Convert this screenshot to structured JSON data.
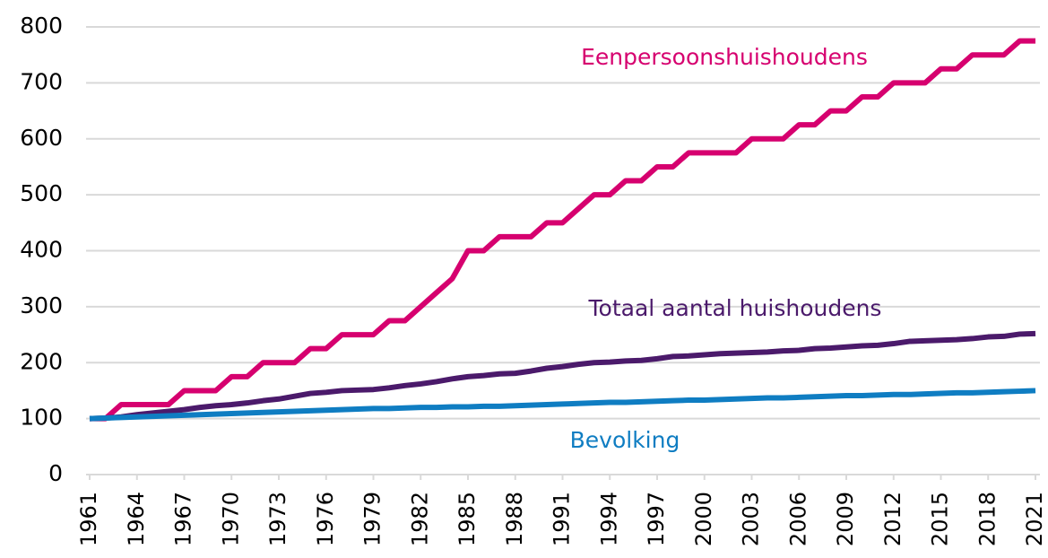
{
  "chart_data": {
    "type": "line",
    "x": [
      1961,
      1962,
      1963,
      1964,
      1965,
      1966,
      1967,
      1968,
      1969,
      1970,
      1971,
      1972,
      1973,
      1974,
      1975,
      1976,
      1977,
      1978,
      1979,
      1980,
      1981,
      1982,
      1983,
      1984,
      1985,
      1986,
      1987,
      1988,
      1989,
      1990,
      1991,
      1992,
      1993,
      1994,
      1995,
      1996,
      1997,
      1998,
      1999,
      2000,
      2001,
      2002,
      2003,
      2004,
      2005,
      2006,
      2007,
      2008,
      2009,
      2010,
      2011,
      2012,
      2013,
      2014,
      2015,
      2016,
      2017,
      2018,
      2019,
      2020,
      2021
    ],
    "series": [
      {
        "name": "Eenpersoonshuishoudens",
        "color": "#d6006f",
        "values": [
          100,
          100,
          125,
          125,
          125,
          125,
          150,
          150,
          150,
          175,
          175,
          200,
          200,
          200,
          225,
          225,
          250,
          250,
          250,
          275,
          275,
          300,
          325,
          350,
          400,
          400,
          425,
          425,
          425,
          450,
          450,
          475,
          500,
          500,
          525,
          525,
          550,
          550,
          575,
          575,
          575,
          575,
          600,
          600,
          600,
          625,
          625,
          650,
          650,
          675,
          675,
          700,
          700,
          700,
          725,
          725,
          750,
          750,
          750,
          775,
          775
        ]
      },
      {
        "name": "Totaal aantal huishoudens",
        "color": "#4b1a6b",
        "values": [
          100,
          101,
          103,
          107,
          110,
          113,
          116,
          120,
          123,
          125,
          128,
          132,
          135,
          140,
          145,
          147,
          150,
          151,
          152,
          155,
          159,
          162,
          166,
          171,
          175,
          177,
          180,
          181,
          185,
          190,
          193,
          197,
          200,
          201,
          203,
          204,
          207,
          211,
          212,
          214,
          216,
          217,
          218,
          219,
          221,
          222,
          225,
          226,
          228,
          230,
          231,
          234,
          238,
          239,
          240,
          241,
          243,
          246,
          247,
          251,
          252
        ]
      },
      {
        "name": "Bevolking",
        "color": "#0f7dc2",
        "values": [
          100,
          101,
          102,
          103,
          104,
          105,
          106,
          107,
          108,
          109,
          110,
          111,
          112,
          113,
          114,
          115,
          116,
          117,
          118,
          118,
          119,
          120,
          120,
          121,
          121,
          122,
          122,
          123,
          124,
          125,
          126,
          127,
          128,
          129,
          129,
          130,
          131,
          132,
          133,
          133,
          134,
          135,
          136,
          137,
          137,
          138,
          139,
          140,
          141,
          141,
          142,
          143,
          143,
          144,
          145,
          146,
          146,
          147,
          148,
          149,
          150
        ]
      }
    ],
    "xlim": [
      1961,
      2021
    ],
    "xticks": [
      1961,
      1964,
      1967,
      1970,
      1973,
      1976,
      1979,
      1982,
      1985,
      1988,
      1991,
      1994,
      1997,
      2000,
      2003,
      2006,
      2009,
      2012,
      2015,
      2018,
      2021
    ],
    "ylim": [
      0,
      800
    ],
    "yticks": [
      0,
      100,
      200,
      300,
      400,
      500,
      600,
      700,
      800
    ],
    "grid": true
  }
}
